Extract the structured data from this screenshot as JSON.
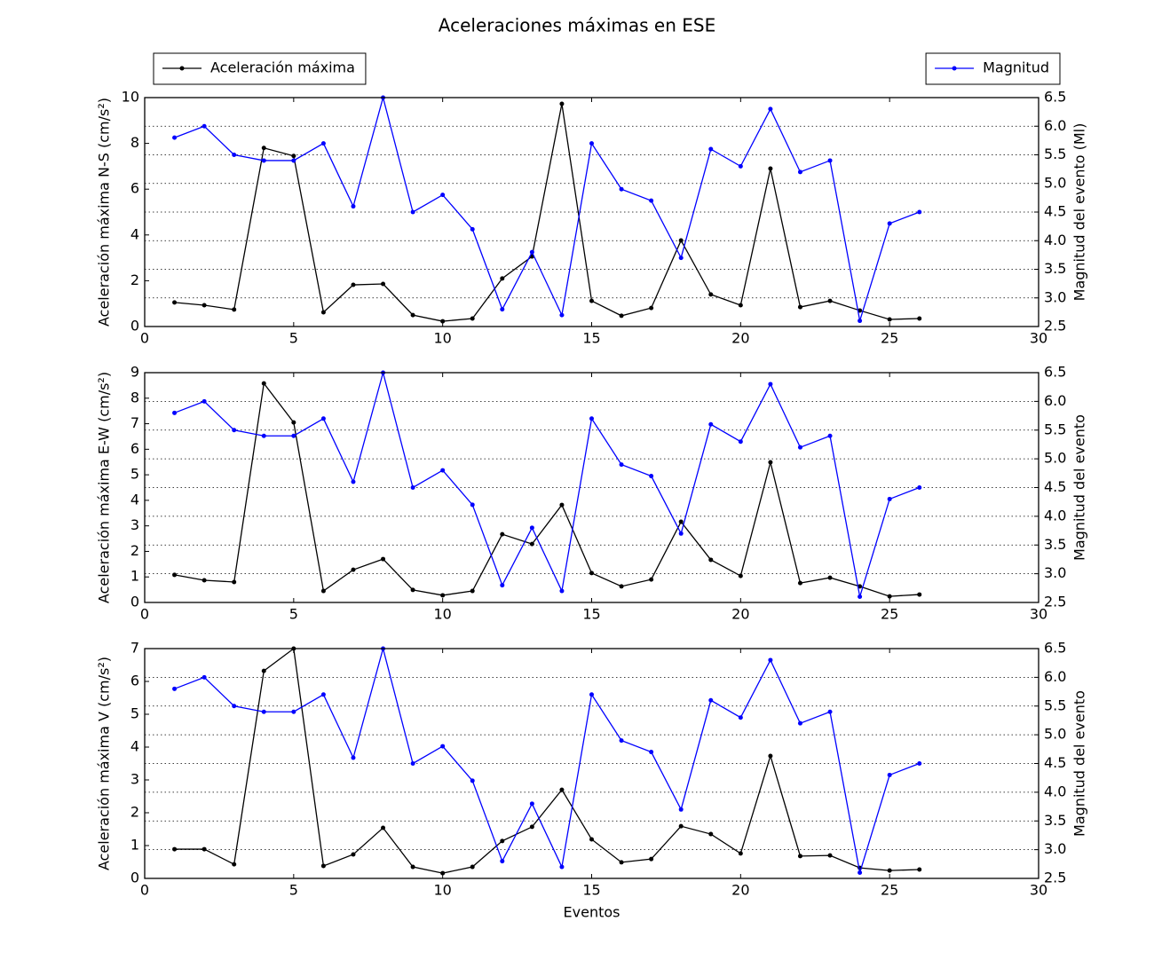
{
  "chart_data": [
    {
      "type": "line",
      "title": "Aceleraciones máximas en ESE",
      "ylabel": "Aceleración máxima N-S (cm/s²)",
      "y2label": "Magnitud del evento (Ml)",
      "x": [
        1,
        2,
        3,
        4,
        5,
        6,
        7,
        8,
        9,
        10,
        11,
        12,
        13,
        14,
        15,
        16,
        17,
        18,
        19,
        20,
        21,
        22,
        23,
        24,
        25,
        26
      ],
      "xlim": [
        0,
        30
      ],
      "xticks": [
        0,
        5,
        10,
        15,
        20,
        25,
        30
      ],
      "ylim": [
        0,
        10
      ],
      "yticks": [
        0,
        2,
        4,
        6,
        8,
        10
      ],
      "y2lim": [
        2.5,
        6.5
      ],
      "y2ticks": [
        2.5,
        {
          "value": 3,
          "label": "3.0"
        },
        3.5,
        {
          "value": 4,
          "label": "4.0"
        },
        4.5,
        {
          "value": 5,
          "label": "5.0"
        },
        5.5,
        {
          "value": 6,
          "label": "6.0"
        },
        6.5
      ],
      "grid": "y2",
      "series": [
        {
          "name": "Aceleración máxima",
          "color": "#000000",
          "values": [
            1.05,
            0.93,
            0.74,
            7.8,
            7.45,
            0.62,
            1.82,
            1.86,
            0.5,
            0.23,
            0.35,
            2.1,
            3.06,
            9.73,
            1.12,
            0.47,
            0.81,
            3.76,
            1.4,
            0.93,
            6.9,
            0.85,
            1.12,
            0.7,
            0.31,
            0.35
          ]
        },
        {
          "name": "Magnitud",
          "color": "#0000ff",
          "axis": "y2",
          "values": [
            5.8,
            6.0,
            5.5,
            5.4,
            5.4,
            5.7,
            4.6,
            6.5,
            4.5,
            4.8,
            4.2,
            2.8,
            3.8,
            2.7,
            5.7,
            4.9,
            4.7,
            3.7,
            5.6,
            5.3,
            6.3,
            5.2,
            5.4,
            2.6,
            4.3,
            4.5
          ]
        }
      ]
    },
    {
      "type": "line",
      "ylabel": "Aceleración máxima E-W (cm/s²)",
      "y2label": "Magnitud del evento",
      "x": [
        1,
        2,
        3,
        4,
        5,
        6,
        7,
        8,
        9,
        10,
        11,
        12,
        13,
        14,
        15,
        16,
        17,
        18,
        19,
        20,
        21,
        22,
        23,
        24,
        25,
        26
      ],
      "xlim": [
        0,
        30
      ],
      "xticks": [
        0,
        5,
        10,
        15,
        20,
        25,
        30
      ],
      "ylim": [
        0,
        9
      ],
      "yticks": [
        0,
        1,
        2,
        3,
        4,
        5,
        6,
        7,
        8,
        9
      ],
      "y2lim": [
        2.5,
        6.5
      ],
      "y2ticks": [
        2.5,
        {
          "value": 3,
          "label": "3.0"
        },
        3.5,
        {
          "value": 4,
          "label": "4.0"
        },
        4.5,
        {
          "value": 5,
          "label": "5.0"
        },
        5.5,
        {
          "value": 6,
          "label": "6.0"
        },
        6.5
      ],
      "grid": "y2",
      "series": [
        {
          "color": "#000000",
          "values": [
            1.08,
            0.87,
            0.8,
            8.58,
            7.05,
            0.45,
            1.28,
            1.7,
            0.49,
            0.28,
            0.45,
            2.67,
            2.29,
            3.82,
            1.15,
            0.63,
            0.9,
            3.16,
            1.67,
            1.04,
            5.49,
            0.76,
            0.97,
            0.63,
            0.24,
            0.31
          ]
        },
        {
          "color": "#0000ff",
          "axis": "y2",
          "values": [
            5.8,
            6.0,
            5.5,
            5.4,
            5.4,
            5.7,
            4.6,
            6.5,
            4.5,
            4.8,
            4.2,
            2.8,
            3.8,
            2.7,
            5.7,
            4.9,
            4.7,
            3.7,
            5.6,
            5.3,
            6.3,
            5.2,
            5.4,
            2.6,
            4.3,
            4.5
          ]
        }
      ]
    },
    {
      "type": "line",
      "ylabel": "Aceleración máxima V (cm/s²)",
      "y2label": "Magnitud del evento",
      "xlabel": "Eventos",
      "x": [
        1,
        2,
        3,
        4,
        5,
        6,
        7,
        8,
        9,
        10,
        11,
        12,
        13,
        14,
        15,
        16,
        17,
        18,
        19,
        20,
        21,
        22,
        23,
        24,
        25,
        26
      ],
      "xlim": [
        0,
        30
      ],
      "xticks": [
        0,
        5,
        10,
        15,
        20,
        25,
        30
      ],
      "ylim": [
        0,
        7
      ],
      "yticks": [
        0,
        1,
        2,
        3,
        4,
        5,
        6,
        7
      ],
      "y2lim": [
        2.5,
        6.5
      ],
      "y2ticks": [
        2.5,
        {
          "value": 3,
          "label": "3.0"
        },
        3.5,
        {
          "value": 4,
          "label": "4.0"
        },
        4.5,
        {
          "value": 5,
          "label": "5.0"
        },
        5.5,
        {
          "value": 6,
          "label": "6.0"
        },
        6.5
      ],
      "grid": "y2",
      "series": [
        {
          "color": "#000000",
          "values": [
            0.89,
            0.89,
            0.43,
            6.32,
            7.0,
            0.38,
            0.73,
            1.54,
            0.35,
            0.16,
            0.35,
            1.14,
            1.57,
            2.7,
            1.19,
            0.49,
            0.59,
            1.59,
            1.35,
            0.76,
            3.73,
            0.68,
            0.7,
            0.32,
            0.24,
            0.27
          ]
        },
        {
          "color": "#0000ff",
          "axis": "y2",
          "values": [
            5.8,
            6.0,
            5.5,
            5.4,
            5.4,
            5.7,
            4.6,
            6.5,
            4.5,
            4.8,
            4.2,
            2.8,
            3.8,
            2.7,
            5.7,
            4.9,
            4.7,
            3.7,
            5.6,
            5.3,
            6.3,
            5.2,
            5.4,
            2.6,
            4.3,
            4.5
          ]
        }
      ]
    }
  ]
}
